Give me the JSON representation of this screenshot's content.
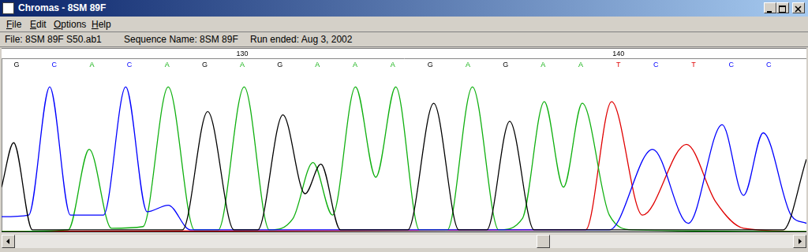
{
  "window": {
    "title": "Chromas - 8SM 89F",
    "menu": [
      "File",
      "Edit",
      "Options",
      "Help"
    ],
    "info": [
      "File: 8SM 89F S50.ab1",
      "Sequence Name: 8SM 89F",
      "Run ended: Aug 3, 2002"
    ]
  },
  "chart_data": {
    "type": "line",
    "xlim": [
      123.6,
      145
    ],
    "xticks": [
      130,
      140
    ],
    "ylim": [
      0,
      105
    ],
    "grid": false,
    "tick_labels": "x",
    "base_calls": {
      "positions": [
        124,
        125,
        126,
        127,
        128,
        129,
        130,
        131,
        132,
        133,
        134,
        135,
        136,
        137,
        138,
        139,
        140,
        141,
        142,
        143,
        144
      ],
      "letters": [
        "G",
        "C",
        "A",
        "C",
        "A",
        "G",
        "A",
        "G",
        "A",
        "A",
        "A",
        "G",
        "A",
        "G",
        "A",
        "A",
        "T",
        "C",
        "T",
        "C",
        "C"
      ]
    },
    "series": [
      {
        "name": "G",
        "color": "#000000",
        "x": [
          123.6,
          123.92,
          124.42,
          128.41,
          129.08,
          129.78,
          130.41,
          131.08,
          131.67,
          132.09,
          132.61,
          134.4,
          135.09,
          135.76,
          136.5,
          137.11,
          137.76,
          144.38,
          145
        ],
        "values": [
          27,
          54,
          1,
          1,
          73,
          1,
          1,
          71,
          23,
          41,
          1,
          1,
          78,
          1,
          1,
          67,
          1,
          1,
          44
        ]
      },
      {
        "name": "C",
        "color": "#0000ff",
        "x": [
          123.6,
          124.32,
          124.88,
          125.43,
          125.89,
          126.31,
          126.9,
          127.47,
          128.03,
          128.62,
          139.76,
          140.91,
          141.86,
          142.76,
          143.33,
          143.85,
          144.59,
          145
        ],
        "values": [
          9,
          10,
          88,
          10,
          10,
          10,
          88,
          12,
          16,
          1,
          1,
          50,
          5,
          65,
          22,
          60,
          10,
          5
        ]
      },
      {
        "name": "A",
        "color": "#10b010",
        "x": [
          123.6,
          125.37,
          125.93,
          126.52,
          127.36,
          128.03,
          128.73,
          129.36,
          130.05,
          130.72,
          131.35,
          131.88,
          132.4,
          133.01,
          133.55,
          134.08,
          134.71,
          135.45,
          136.12,
          136.82,
          137.45,
          138.03,
          138.54,
          139.04,
          139.76,
          140.39,
          145
        ],
        "values": [
          0,
          1,
          50,
          2,
          3,
          88,
          1,
          1,
          88,
          1,
          8,
          42,
          10,
          88,
          33,
          88,
          1,
          1,
          88,
          1,
          8,
          79,
          27,
          78,
          10,
          1,
          0
        ]
      },
      {
        "name": "T",
        "color": "#e00000",
        "x": [
          123.6,
          139.13,
          139.82,
          140.64,
          141.81,
          142.59,
          143.33,
          145
        ],
        "values": [
          0,
          1,
          79,
          10,
          53,
          18,
          2,
          0
        ]
      }
    ]
  }
}
